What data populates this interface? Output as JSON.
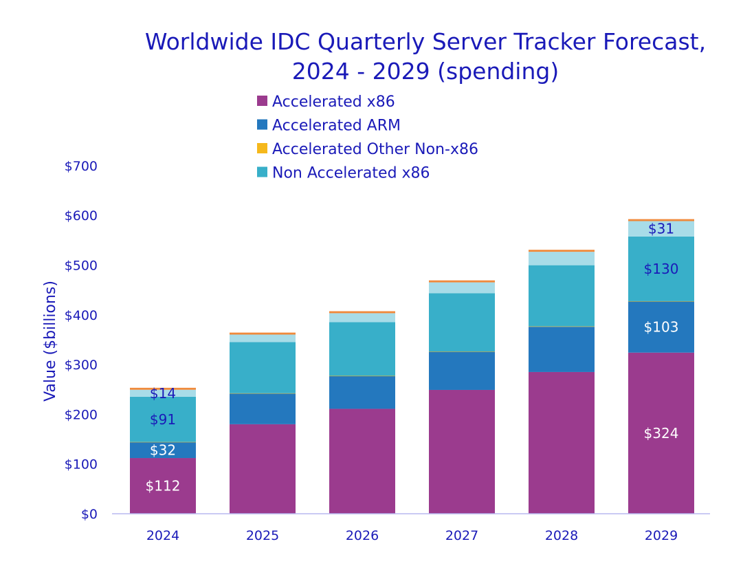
{
  "chart_data": {
    "type": "bar",
    "stacked": true,
    "title_lines": [
      "Worldwide IDC Quarterly Server Tracker Forecast,",
      "2024 - 2029 (spending)"
    ],
    "ylabel": "Value  ($billions)",
    "xlabel": "",
    "categories": [
      "2024",
      "2025",
      "2026",
      "2027",
      "2028",
      "2029"
    ],
    "y_ticks": [
      "$0",
      "$100",
      "$200",
      "$300",
      "$400",
      "$500",
      "$600",
      "$700"
    ],
    "ylim": [
      0,
      700
    ],
    "legend_position": "top",
    "legend_entries": [
      "Accelerated x86",
      "Accelerated ARM",
      "Accelerated Other Non-x86",
      "Non Accelerated x86"
    ],
    "series": [
      {
        "name": "Accelerated x86",
        "color": "#9b3b8e",
        "label_color": "#ffffff",
        "values": [
          112,
          180,
          211,
          249,
          285,
          324
        ],
        "labels": [
          "$112",
          "",
          "",
          "",
          "",
          "$324"
        ]
      },
      {
        "name": "Accelerated ARM",
        "color": "#2478be",
        "label_color": "#ffffff",
        "values": [
          32,
          62,
          66,
          77,
          91,
          103
        ],
        "labels": [
          "$32",
          "",
          "",
          "",
          "",
          "$103"
        ]
      },
      {
        "name": "Accelerated Other Non-x86",
        "color": "#f5b81c",
        "label_color": "#1a1ab8",
        "values": [
          0.3,
          0.3,
          0.3,
          0.3,
          0.8,
          0.5
        ],
        "labels": [
          "",
          "",
          "",
          "",
          "",
          ""
        ]
      },
      {
        "name": "Non Accelerated x86",
        "color": "#38afc9",
        "label_color": "#1a1ab8",
        "values": [
          91,
          103,
          108,
          117,
          123,
          130
        ],
        "labels": [
          "$91",
          "",
          "",
          "",
          "",
          "$130"
        ]
      },
      {
        "name": "",
        "color": "#a8dce8",
        "label_color": "#1a1ab8",
        "values": [
          14,
          15,
          18,
          22,
          27,
          31
        ],
        "labels": [
          "$14",
          "",
          "",
          "",
          "",
          "$31"
        ]
      },
      {
        "name": "",
        "color": "#f08a3c",
        "label_color": "#1a1ab8",
        "values": [
          4,
          4,
          4,
          4,
          4,
          4
        ],
        "labels": [
          "",
          "",
          "",
          "",
          "",
          ""
        ]
      }
    ]
  }
}
